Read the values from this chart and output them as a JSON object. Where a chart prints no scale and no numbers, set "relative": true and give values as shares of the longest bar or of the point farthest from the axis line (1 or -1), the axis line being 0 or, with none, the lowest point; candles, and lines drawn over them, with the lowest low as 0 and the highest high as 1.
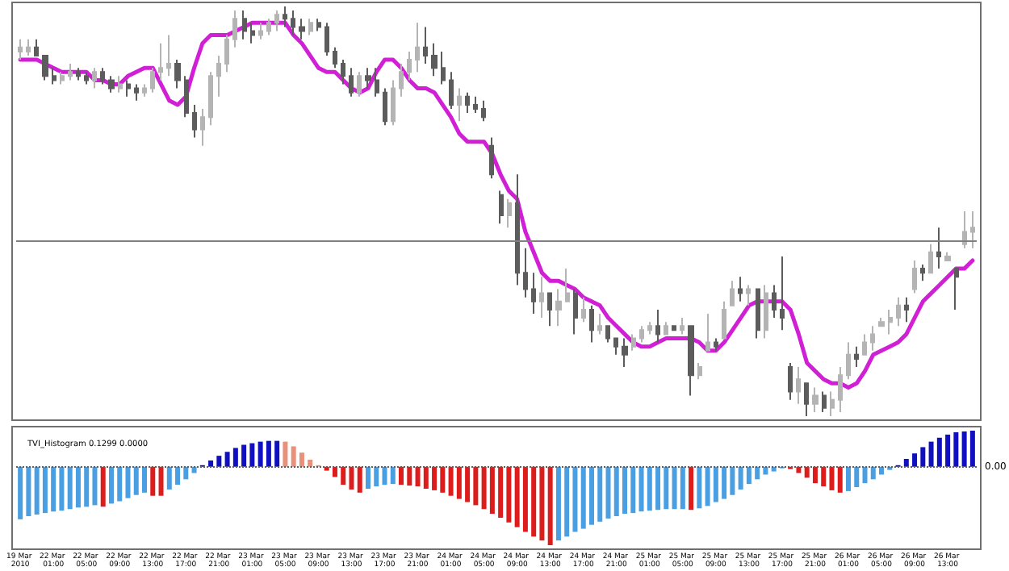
{
  "chart_data": [
    {
      "type": "candlestick",
      "relative": true,
      "tick_labels": false,
      "categories": [
        "19 Mar 2010",
        null,
        null,
        null,
        "22 Mar 01:00",
        null,
        null,
        null,
        "22 Mar 05:00",
        null,
        null,
        null,
        "22 Mar 09:00",
        null,
        null,
        null,
        "22 Mar 13:00",
        null,
        null,
        null,
        "22 Mar 17:00",
        null,
        null,
        null,
        "22 Mar 21:00",
        null,
        null,
        null,
        "23 Mar 01:00",
        null,
        null,
        null,
        "23 Mar 05:00",
        null,
        null,
        null,
        "23 Mar 09:00",
        null,
        null,
        null,
        "23 Mar 13:00",
        null,
        null,
        null,
        "23 Mar 17:00",
        null,
        null,
        null,
        "23 Mar 21:00",
        null,
        null,
        null,
        "24 Mar 01:00",
        null,
        null,
        null,
        "24 Mar 05:00",
        null,
        null,
        null,
        "24 Mar 09:00",
        null,
        null,
        null,
        "24 Mar 13:00",
        null,
        null,
        null,
        "24 Mar 17:00",
        null,
        null,
        null,
        "24 Mar 21:00",
        null,
        null,
        null,
        "25 Mar 01:00",
        null,
        null,
        null,
        "25 Mar 05:00",
        null,
        null,
        null,
        "25 Mar 09:00",
        null,
        null,
        null,
        "25 Mar 13:00",
        null,
        null,
        null,
        "25 Mar 17:00",
        null,
        null,
        null,
        "25 Mar 21:00",
        null,
        null,
        null,
        "26 Mar 01:00",
        null,
        null,
        null,
        "26 Mar 05:00",
        null,
        null,
        null,
        "26 Mar 09:00",
        null,
        null,
        null,
        "26 Mar 13:00",
        null,
        null,
        null
      ],
      "series": [
        {
          "type": "candlestick",
          "colors": [
            "#b4b4b4",
            "#b4b4b4",
            "#5c5c5c",
            "#5c5c5c",
            "#5c5c5c",
            "#b4b4b4",
            "#b4b4b4",
            "#5c5c5c",
            "#5c5c5c",
            "#b4b4b4",
            "#5c5c5c",
            "#5c5c5c",
            "#b4b4b4",
            "#5c5c5c",
            "#5c5c5c",
            "#b4b4b4",
            "#b4b4b4",
            "#b4b4b4",
            "#b4b4b4",
            "#5c5c5c",
            "#5c5c5c",
            "#5c5c5c",
            "#b4b4b4",
            "#b4b4b4",
            "#b4b4b4",
            "#b4b4b4",
            "#b4b4b4",
            "#5c5c5c",
            "#5c5c5c",
            "#b4b4b4",
            "#b4b4b4",
            "#b4b4b4",
            "#5c5c5c",
            "#5c5c5c",
            "#5c5c5c",
            "#b4b4b4",
            "#5c5c5c",
            "#5c5c5c",
            "#5c5c5c",
            "#5c5c5c",
            "#5c5c5c",
            "#b4b4b4",
            "#5c5c5c",
            "#5c5c5c",
            "#5c5c5c",
            "#b4b4b4",
            "#b4b4b4",
            "#b4b4b4",
            "#b4b4b4",
            "#5c5c5c",
            "#5c5c5c",
            "#5c5c5c",
            "#5c5c5c",
            "#b4b4b4",
            "#5c5c5c",
            "#5c5c5c",
            "#5c5c5c",
            "#5c5c5c",
            "#5c5c5c",
            "#b4b4b4",
            "#5c5c5c",
            "#5c5c5c",
            "#5c5c5c",
            "#b4b4b4",
            "#5c5c5c",
            "#b4b4b4",
            "#b4b4b4",
            "#5c5c5c",
            "#b4b4b4",
            "#5c5c5c",
            "#b4b4b4",
            "#5c5c5c",
            "#5c5c5c",
            "#5c5c5c",
            "#b4b4b4",
            "#b4b4b4",
            "#b4b4b4",
            "#5c5c5c",
            "#b4b4b4",
            "#5c5c5c",
            "#b4b4b4",
            "#5c5c5c",
            "#b4b4b4",
            "#b4b4b4",
            "#5c5c5c",
            "#b4b4b4",
            "#b4b4b4",
            "#5c5c5c",
            "#b4b4b4",
            "#5c5c5c",
            "#b4b4b4",
            "#5c5c5c",
            "#5c5c5c",
            "#5c5c5c",
            "#b4b4b4",
            "#5c5c5c",
            "#b4b4b4",
            "#5c5c5c",
            "#b4b4b4",
            "#b4b4b4",
            "#b4b4b4",
            "#5c5c5c",
            "#b4b4b4",
            "#b4b4b4",
            "#b4b4b4",
            "#b4b4b4",
            "#b4b4b4",
            "#5c5c5c",
            "#b4b4b4",
            "#5c5c5c",
            "#b4b4b4",
            "#5c5c5c",
            "#b4b4b4",
            "#5c5c5c",
            "#b4b4b4",
            "#b4b4b4"
          ],
          "ohlc": [
            [
              0.89,
              0.92,
              0.87,
              0.9
            ],
            [
              0.89,
              0.92,
              0.88,
              0.9
            ],
            [
              0.9,
              0.92,
              0.88,
              0.88
            ],
            [
              0.88,
              0.88,
              0.82,
              0.83
            ],
            [
              0.83,
              0.85,
              0.81,
              0.82
            ],
            [
              0.82,
              0.84,
              0.81,
              0.83
            ],
            [
              0.83,
              0.86,
              0.82,
              0.84
            ],
            [
              0.84,
              0.85,
              0.82,
              0.83
            ],
            [
              0.83,
              0.84,
              0.81,
              0.82
            ],
            [
              0.82,
              0.85,
              0.8,
              0.84
            ],
            [
              0.84,
              0.85,
              0.81,
              0.82
            ],
            [
              0.82,
              0.83,
              0.79,
              0.8
            ],
            [
              0.8,
              0.83,
              0.79,
              0.81
            ],
            [
              0.81,
              0.82,
              0.78,
              0.8
            ],
            [
              0.8,
              0.81,
              0.77,
              0.79
            ],
            [
              0.79,
              0.81,
              0.78,
              0.8
            ],
            [
              0.8,
              0.85,
              0.79,
              0.84
            ],
            [
              0.84,
              0.91,
              0.82,
              0.85
            ],
            [
              0.85,
              0.93,
              0.83,
              0.86
            ],
            [
              0.86,
              0.87,
              0.8,
              0.82
            ],
            [
              0.82,
              0.83,
              0.73,
              0.74
            ],
            [
              0.74,
              0.76,
              0.68,
              0.7
            ],
            [
              0.7,
              0.75,
              0.66,
              0.73
            ],
            [
              0.73,
              0.84,
              0.71,
              0.83
            ],
            [
              0.83,
              0.88,
              0.78,
              0.86
            ],
            [
              0.86,
              0.93,
              0.84,
              0.92
            ],
            [
              0.92,
              0.99,
              0.9,
              0.97
            ],
            [
              0.97,
              0.99,
              0.92,
              0.94
            ],
            [
              0.94,
              0.96,
              0.91,
              0.93
            ],
            [
              0.93,
              0.96,
              0.92,
              0.94
            ],
            [
              0.94,
              0.97,
              0.93,
              0.96
            ],
            [
              0.96,
              0.99,
              0.94,
              0.98
            ],
            [
              0.98,
              1.0,
              0.95,
              0.97
            ],
            [
              0.97,
              0.99,
              0.93,
              0.95
            ],
            [
              0.95,
              0.97,
              0.92,
              0.94
            ],
            [
              0.94,
              0.97,
              0.93,
              0.96
            ],
            [
              0.96,
              0.97,
              0.94,
              0.95
            ],
            [
              0.95,
              0.96,
              0.88,
              0.89
            ],
            [
              0.89,
              0.9,
              0.85,
              0.86
            ],
            [
              0.86,
              0.87,
              0.81,
              0.83
            ],
            [
              0.83,
              0.85,
              0.78,
              0.79
            ],
            [
              0.79,
              0.84,
              0.78,
              0.83
            ],
            [
              0.83,
              0.85,
              0.8,
              0.82
            ],
            [
              0.82,
              0.85,
              0.78,
              0.79
            ],
            [
              0.79,
              0.8,
              0.71,
              0.72
            ],
            [
              0.72,
              0.82,
              0.71,
              0.8
            ],
            [
              0.8,
              0.86,
              0.78,
              0.84
            ],
            [
              0.84,
              0.89,
              0.82,
              0.87
            ],
            [
              0.87,
              0.96,
              0.84,
              0.9
            ],
            [
              0.9,
              0.95,
              0.86,
              0.88
            ],
            [
              0.88,
              0.91,
              0.83,
              0.85
            ],
            [
              0.85,
              0.89,
              0.81,
              0.82
            ],
            [
              0.82,
              0.84,
              0.75,
              0.76
            ],
            [
              0.76,
              0.8,
              0.72,
              0.78
            ],
            [
              0.78,
              0.79,
              0.74,
              0.76
            ],
            [
              0.76,
              0.78,
              0.74,
              0.75
            ],
            [
              0.75,
              0.77,
              0.72,
              0.73
            ],
            [
              0.66,
              0.68,
              0.58,
              0.59
            ],
            [
              0.54,
              0.55,
              0.47,
              0.49
            ],
            [
              0.49,
              0.53,
              0.46,
              0.52
            ],
            [
              0.52,
              0.59,
              0.32,
              0.35
            ],
            [
              0.35,
              0.41,
              0.29,
              0.31
            ],
            [
              0.31,
              0.35,
              0.25,
              0.28
            ],
            [
              0.28,
              0.34,
              0.24,
              0.3
            ],
            [
              0.3,
              0.3,
              0.22,
              0.26
            ],
            [
              0.26,
              0.31,
              0.22,
              0.28
            ],
            [
              0.28,
              0.36,
              0.28,
              0.3
            ],
            [
              0.3,
              0.31,
              0.2,
              0.24
            ],
            [
              0.24,
              0.29,
              0.23,
              0.26
            ],
            [
              0.26,
              0.27,
              0.18,
              0.21
            ],
            [
              0.21,
              0.25,
              0.2,
              0.22
            ],
            [
              0.22,
              0.22,
              0.18,
              0.19
            ],
            [
              0.19,
              0.19,
              0.15,
              0.17
            ],
            [
              0.17,
              0.19,
              0.12,
              0.15
            ],
            [
              0.17,
              0.2,
              0.16,
              0.19
            ],
            [
              0.19,
              0.22,
              0.18,
              0.21
            ],
            [
              0.21,
              0.23,
              0.2,
              0.22
            ],
            [
              0.22,
              0.26,
              0.18,
              0.2
            ],
            [
              0.2,
              0.23,
              0.2,
              0.22
            ],
            [
              0.22,
              0.22,
              0.21,
              0.21
            ],
            [
              0.21,
              0.24,
              0.2,
              0.22
            ],
            [
              0.22,
              0.22,
              0.05,
              0.1
            ],
            [
              0.1,
              0.13,
              0.09,
              0.12
            ],
            [
              0.16,
              0.25,
              0.16,
              0.18
            ],
            [
              0.18,
              0.19,
              0.16,
              0.17
            ],
            [
              0.19,
              0.28,
              0.19,
              0.26
            ],
            [
              0.27,
              0.33,
              0.27,
              0.31
            ],
            [
              0.31,
              0.34,
              0.28,
              0.3
            ],
            [
              0.3,
              0.32,
              0.27,
              0.31
            ],
            [
              0.31,
              0.31,
              0.19,
              0.21
            ],
            [
              0.21,
              0.32,
              0.19,
              0.3
            ],
            [
              0.3,
              0.32,
              0.24,
              0.26
            ],
            [
              0.26,
              0.39,
              0.21,
              0.24
            ],
            [
              0.12,
              0.13,
              0.04,
              0.06
            ],
            [
              0.06,
              0.12,
              0.03,
              0.09
            ],
            [
              0.08,
              0.08,
              0.0,
              0.03
            ],
            [
              0.03,
              0.07,
              0.01,
              0.05
            ],
            [
              0.05,
              0.06,
              0.01,
              0.02
            ],
            [
              0.02,
              0.06,
              0.0,
              0.04
            ],
            [
              0.04,
              0.12,
              0.01,
              0.1
            ],
            [
              0.1,
              0.18,
              0.09,
              0.15
            ],
            [
              0.15,
              0.17,
              0.12,
              0.14
            ],
            [
              0.15,
              0.2,
              0.15,
              0.18
            ],
            [
              0.18,
              0.22,
              0.16,
              0.2
            ],
            [
              0.22,
              0.24,
              0.22,
              0.23
            ],
            [
              0.23,
              0.26,
              0.2,
              0.24
            ],
            [
              0.24,
              0.29,
              0.22,
              0.27
            ],
            [
              0.27,
              0.29,
              0.23,
              0.26
            ],
            [
              0.31,
              0.38,
              0.3,
              0.36
            ],
            [
              0.36,
              0.37,
              0.33,
              0.35
            ],
            [
              0.35,
              0.42,
              0.35,
              0.4
            ],
            [
              0.4,
              0.46,
              0.36,
              0.39
            ],
            [
              0.38,
              0.4,
              0.38,
              0.39
            ],
            [
              0.36,
              0.36,
              0.26,
              0.34
            ],
            [
              0.42,
              0.5,
              0.41,
              0.45
            ],
            [
              0.45,
              0.5,
              0.41,
              0.46
            ]
          ]
        },
        {
          "type": "line",
          "color": "#d11fd6",
          "values": [
            0.87,
            0.87,
            0.87,
            0.86,
            0.85,
            0.84,
            0.84,
            0.84,
            0.84,
            0.82,
            0.82,
            0.81,
            0.81,
            0.83,
            0.84,
            0.85,
            0.85,
            0.81,
            0.77,
            0.76,
            0.78,
            0.85,
            0.91,
            0.93,
            0.93,
            0.93,
            0.94,
            0.95,
            0.96,
            0.96,
            0.96,
            0.96,
            0.96,
            0.93,
            0.91,
            0.88,
            0.85,
            0.84,
            0.84,
            0.82,
            0.8,
            0.79,
            0.8,
            0.84,
            0.87,
            0.87,
            0.85,
            0.82,
            0.8,
            0.8,
            0.79,
            0.76,
            0.73,
            0.69,
            0.67,
            0.67,
            0.67,
            0.64,
            0.59,
            0.55,
            0.53,
            0.45,
            0.4,
            0.35,
            0.33,
            0.33,
            0.32,
            0.31,
            0.29,
            0.28,
            0.27,
            0.24,
            0.22,
            0.2,
            0.18,
            0.17,
            0.17,
            0.18,
            0.19,
            0.19,
            0.19,
            0.19,
            0.18,
            0.16,
            0.16,
            0.18,
            0.21,
            0.24,
            0.27,
            0.28,
            0.28,
            0.28,
            0.28,
            0.26,
            0.2,
            0.13,
            0.11,
            0.09,
            0.08,
            0.08,
            0.07,
            0.08,
            0.11,
            0.15,
            0.16,
            0.17,
            0.18,
            0.2,
            0.24,
            0.28,
            0.3,
            0.32,
            0.34,
            0.36,
            0.36,
            0.38
          ]
        }
      ],
      "ref_lines": [
        {
          "axis": "y",
          "value": 0.43,
          "color": "#808080",
          "line_style": "solid"
        }
      ]
    },
    {
      "type": "bar",
      "relative": true,
      "tick_labels": "x",
      "title": "TVI_Histogram 0.1299 0.0000",
      "categories": [
        "19 Mar 2010",
        null,
        null,
        null,
        "22 Mar 01:00",
        null,
        null,
        null,
        "22 Mar 05:00",
        null,
        null,
        null,
        "22 Mar 09:00",
        null,
        null,
        null,
        "22 Mar 13:00",
        null,
        null,
        null,
        "22 Mar 17:00",
        null,
        null,
        null,
        "22 Mar 21:00",
        null,
        null,
        null,
        "23 Mar 01:00",
        null,
        null,
        null,
        "23 Mar 05:00",
        null,
        null,
        null,
        "23 Mar 09:00",
        null,
        null,
        null,
        "23 Mar 13:00",
        null,
        null,
        null,
        "23 Mar 17:00",
        null,
        null,
        null,
        "23 Mar 21:00",
        null,
        null,
        null,
        "24 Mar 01:00",
        null,
        null,
        null,
        "24 Mar 05:00",
        null,
        null,
        null,
        "24 Mar 09:00",
        null,
        null,
        null,
        "24 Mar 13:00",
        null,
        null,
        null,
        "24 Mar 17:00",
        null,
        null,
        null,
        "24 Mar 21:00",
        null,
        null,
        null,
        "25 Mar 01:00",
        null,
        null,
        null,
        "25 Mar 05:00",
        null,
        null,
        null,
        "25 Mar 09:00",
        null,
        null,
        null,
        "25 Mar 13:00",
        null,
        null,
        null,
        "25 Mar 17:00",
        null,
        null,
        null,
        "25 Mar 21:00",
        null,
        null,
        null,
        "26 Mar 01:00",
        null,
        null,
        null,
        "26 Mar 05:00",
        null,
        null,
        null,
        "26 Mar 09:00",
        null,
        null,
        null,
        "26 Mar 13:00",
        null,
        null,
        null
      ],
      "values": [
        -0.67,
        -0.63,
        -0.61,
        -0.59,
        -0.57,
        -0.56,
        -0.54,
        -0.52,
        -0.51,
        -0.49,
        -0.51,
        -0.47,
        -0.44,
        -0.4,
        -0.36,
        -0.33,
        -0.37,
        -0.37,
        -0.29,
        -0.23,
        -0.16,
        -0.08,
        0.02,
        0.08,
        0.14,
        0.19,
        0.24,
        0.28,
        0.3,
        0.32,
        0.33,
        0.33,
        0.32,
        0.26,
        0.18,
        0.09,
        0.02,
        -0.05,
        -0.13,
        -0.23,
        -0.29,
        -0.33,
        -0.28,
        -0.25,
        -0.23,
        -0.22,
        -0.23,
        -0.24,
        -0.25,
        -0.28,
        -0.3,
        -0.33,
        -0.37,
        -0.41,
        -0.45,
        -0.49,
        -0.54,
        -0.6,
        -0.65,
        -0.71,
        -0.77,
        -0.83,
        -0.89,
        -0.94,
        -1,
        -0.94,
        -0.89,
        -0.83,
        -0.79,
        -0.74,
        -0.7,
        -0.66,
        -0.63,
        -0.6,
        -0.59,
        -0.57,
        -0.56,
        -0.55,
        -0.54,
        -0.54,
        -0.54,
        -0.55,
        -0.53,
        -0.5,
        -0.45,
        -0.41,
        -0.36,
        -0.29,
        -0.22,
        -0.16,
        -0.1,
        -0.06,
        -0.02,
        -0.03,
        -0.08,
        -0.14,
        -0.21,
        -0.25,
        -0.3,
        -0.33,
        -0.31,
        -0.26,
        -0.21,
        -0.16,
        -0.1,
        -0.04,
        0.02,
        0.1,
        0.17,
        0.25,
        0.32,
        0.37,
        0.41,
        0.44,
        0.45,
        0.46
      ],
      "colors": [
        "#4a9fe3",
        "#4a9fe3",
        "#4a9fe3",
        "#4a9fe3",
        "#4a9fe3",
        "#4a9fe3",
        "#4a9fe3",
        "#4a9fe3",
        "#4a9fe3",
        "#4a9fe3",
        "#dd1c1c",
        "#4a9fe3",
        "#4a9fe3",
        "#4a9fe3",
        "#4a9fe3",
        "#4a9fe3",
        "#dd1c1c",
        "#dd1c1c",
        "#4a9fe3",
        "#4a9fe3",
        "#4a9fe3",
        "#4a9fe3",
        "#1010c0",
        "#1010c0",
        "#1010c0",
        "#1010c0",
        "#1010c0",
        "#1010c0",
        "#1010c0",
        "#1010c0",
        "#1010c0",
        "#1010c0",
        "#e8907a",
        "#e8907a",
        "#e8907a",
        "#e8907a",
        "#e8907a",
        "#dd1c1c",
        "#dd1c1c",
        "#dd1c1c",
        "#dd1c1c",
        "#dd1c1c",
        "#4a9fe3",
        "#4a9fe3",
        "#4a9fe3",
        "#4a9fe3",
        "#dd1c1c",
        "#dd1c1c",
        "#dd1c1c",
        "#dd1c1c",
        "#dd1c1c",
        "#dd1c1c",
        "#dd1c1c",
        "#dd1c1c",
        "#dd1c1c",
        "#dd1c1c",
        "#dd1c1c",
        "#dd1c1c",
        "#dd1c1c",
        "#dd1c1c",
        "#dd1c1c",
        "#dd1c1c",
        "#dd1c1c",
        "#dd1c1c",
        "#dd1c1c",
        "#4a9fe3",
        "#4a9fe3",
        "#4a9fe3",
        "#4a9fe3",
        "#4a9fe3",
        "#4a9fe3",
        "#4a9fe3",
        "#4a9fe3",
        "#4a9fe3",
        "#4a9fe3",
        "#4a9fe3",
        "#4a9fe3",
        "#4a9fe3",
        "#4a9fe3",
        "#4a9fe3",
        "#4a9fe3",
        "#dd1c1c",
        "#4a9fe3",
        "#4a9fe3",
        "#4a9fe3",
        "#4a9fe3",
        "#4a9fe3",
        "#4a9fe3",
        "#4a9fe3",
        "#4a9fe3",
        "#4a9fe3",
        "#4a9fe3",
        "#4a9fe3",
        "#dd1c1c",
        "#dd1c1c",
        "#dd1c1c",
        "#dd1c1c",
        "#dd1c1c",
        "#dd1c1c",
        "#dd1c1c",
        "#4a9fe3",
        "#4a9fe3",
        "#4a9fe3",
        "#4a9fe3",
        "#4a9fe3",
        "#4a9fe3",
        "#1010c0",
        "#1010c0",
        "#1010c0",
        "#1010c0",
        "#1010c0",
        "#1010c0",
        "#1010c0",
        "#1010c0",
        "#1010c0",
        "#1010c0"
      ],
      "ref_lines": [
        {
          "axis": "y",
          "value": 0,
          "label": "0.00",
          "color": "#606060",
          "line_style": "dotted"
        }
      ]
    }
  ]
}
